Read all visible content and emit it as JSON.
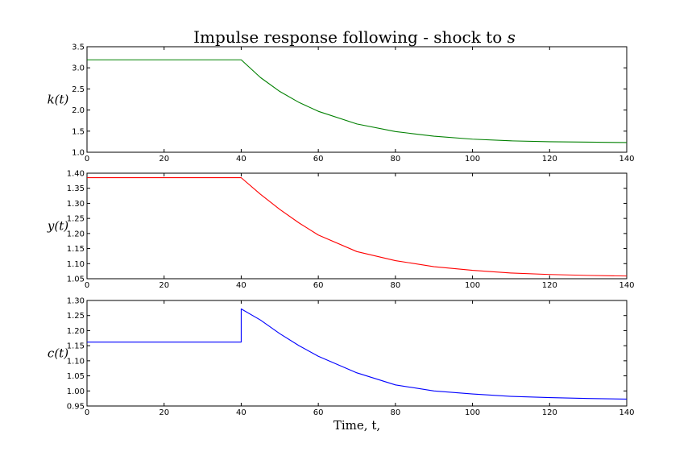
{
  "chart_data": {
    "title": "Impulse response following - shock to s",
    "xlabel": "Time, t,",
    "panels": [
      {
        "type": "line",
        "ylabel": "k(t)",
        "color": "#008000",
        "xlim": [
          0,
          140
        ],
        "ylim": [
          1.0,
          3.5
        ],
        "xticks": [
          0,
          20,
          40,
          60,
          80,
          100,
          120,
          140
        ],
        "yticks": [
          1.0,
          1.5,
          2.0,
          2.5,
          3.0,
          3.5
        ],
        "x": [
          0,
          40,
          45,
          50,
          55,
          60,
          70,
          80,
          90,
          100,
          110,
          120,
          130,
          140
        ],
        "values": [
          3.19,
          3.19,
          2.77,
          2.44,
          2.18,
          1.97,
          1.67,
          1.49,
          1.38,
          1.31,
          1.27,
          1.25,
          1.24,
          1.23
        ]
      },
      {
        "type": "line",
        "ylabel": "y(t)",
        "color": "#ff0000",
        "xlim": [
          0,
          140
        ],
        "ylim": [
          1.05,
          1.4
        ],
        "xticks": [
          0,
          20,
          40,
          60,
          80,
          100,
          120,
          140
        ],
        "yticks": [
          1.05,
          1.1,
          1.15,
          1.2,
          1.25,
          1.3,
          1.35,
          1.4
        ],
        "x": [
          0,
          40,
          45,
          50,
          55,
          60,
          70,
          80,
          90,
          100,
          110,
          120,
          130,
          140
        ],
        "values": [
          1.385,
          1.385,
          1.33,
          1.28,
          1.235,
          1.195,
          1.14,
          1.11,
          1.09,
          1.078,
          1.069,
          1.064,
          1.061,
          1.059
        ]
      },
      {
        "type": "line",
        "ylabel": "c(t)",
        "color": "#0000ff",
        "xlim": [
          0,
          140
        ],
        "ylim": [
          0.95,
          1.3
        ],
        "xticks": [
          0,
          20,
          40,
          60,
          80,
          100,
          120,
          140
        ],
        "yticks": [
          0.95,
          1.0,
          1.05,
          1.1,
          1.15,
          1.2,
          1.25,
          1.3
        ],
        "x": [
          0,
          40,
          40,
          45,
          50,
          55,
          60,
          70,
          80,
          90,
          100,
          110,
          120,
          130,
          140
        ],
        "values": [
          1.162,
          1.162,
          1.272,
          1.235,
          1.19,
          1.15,
          1.115,
          1.06,
          1.02,
          1.0,
          0.99,
          0.982,
          0.978,
          0.975,
          0.973
        ]
      }
    ]
  }
}
